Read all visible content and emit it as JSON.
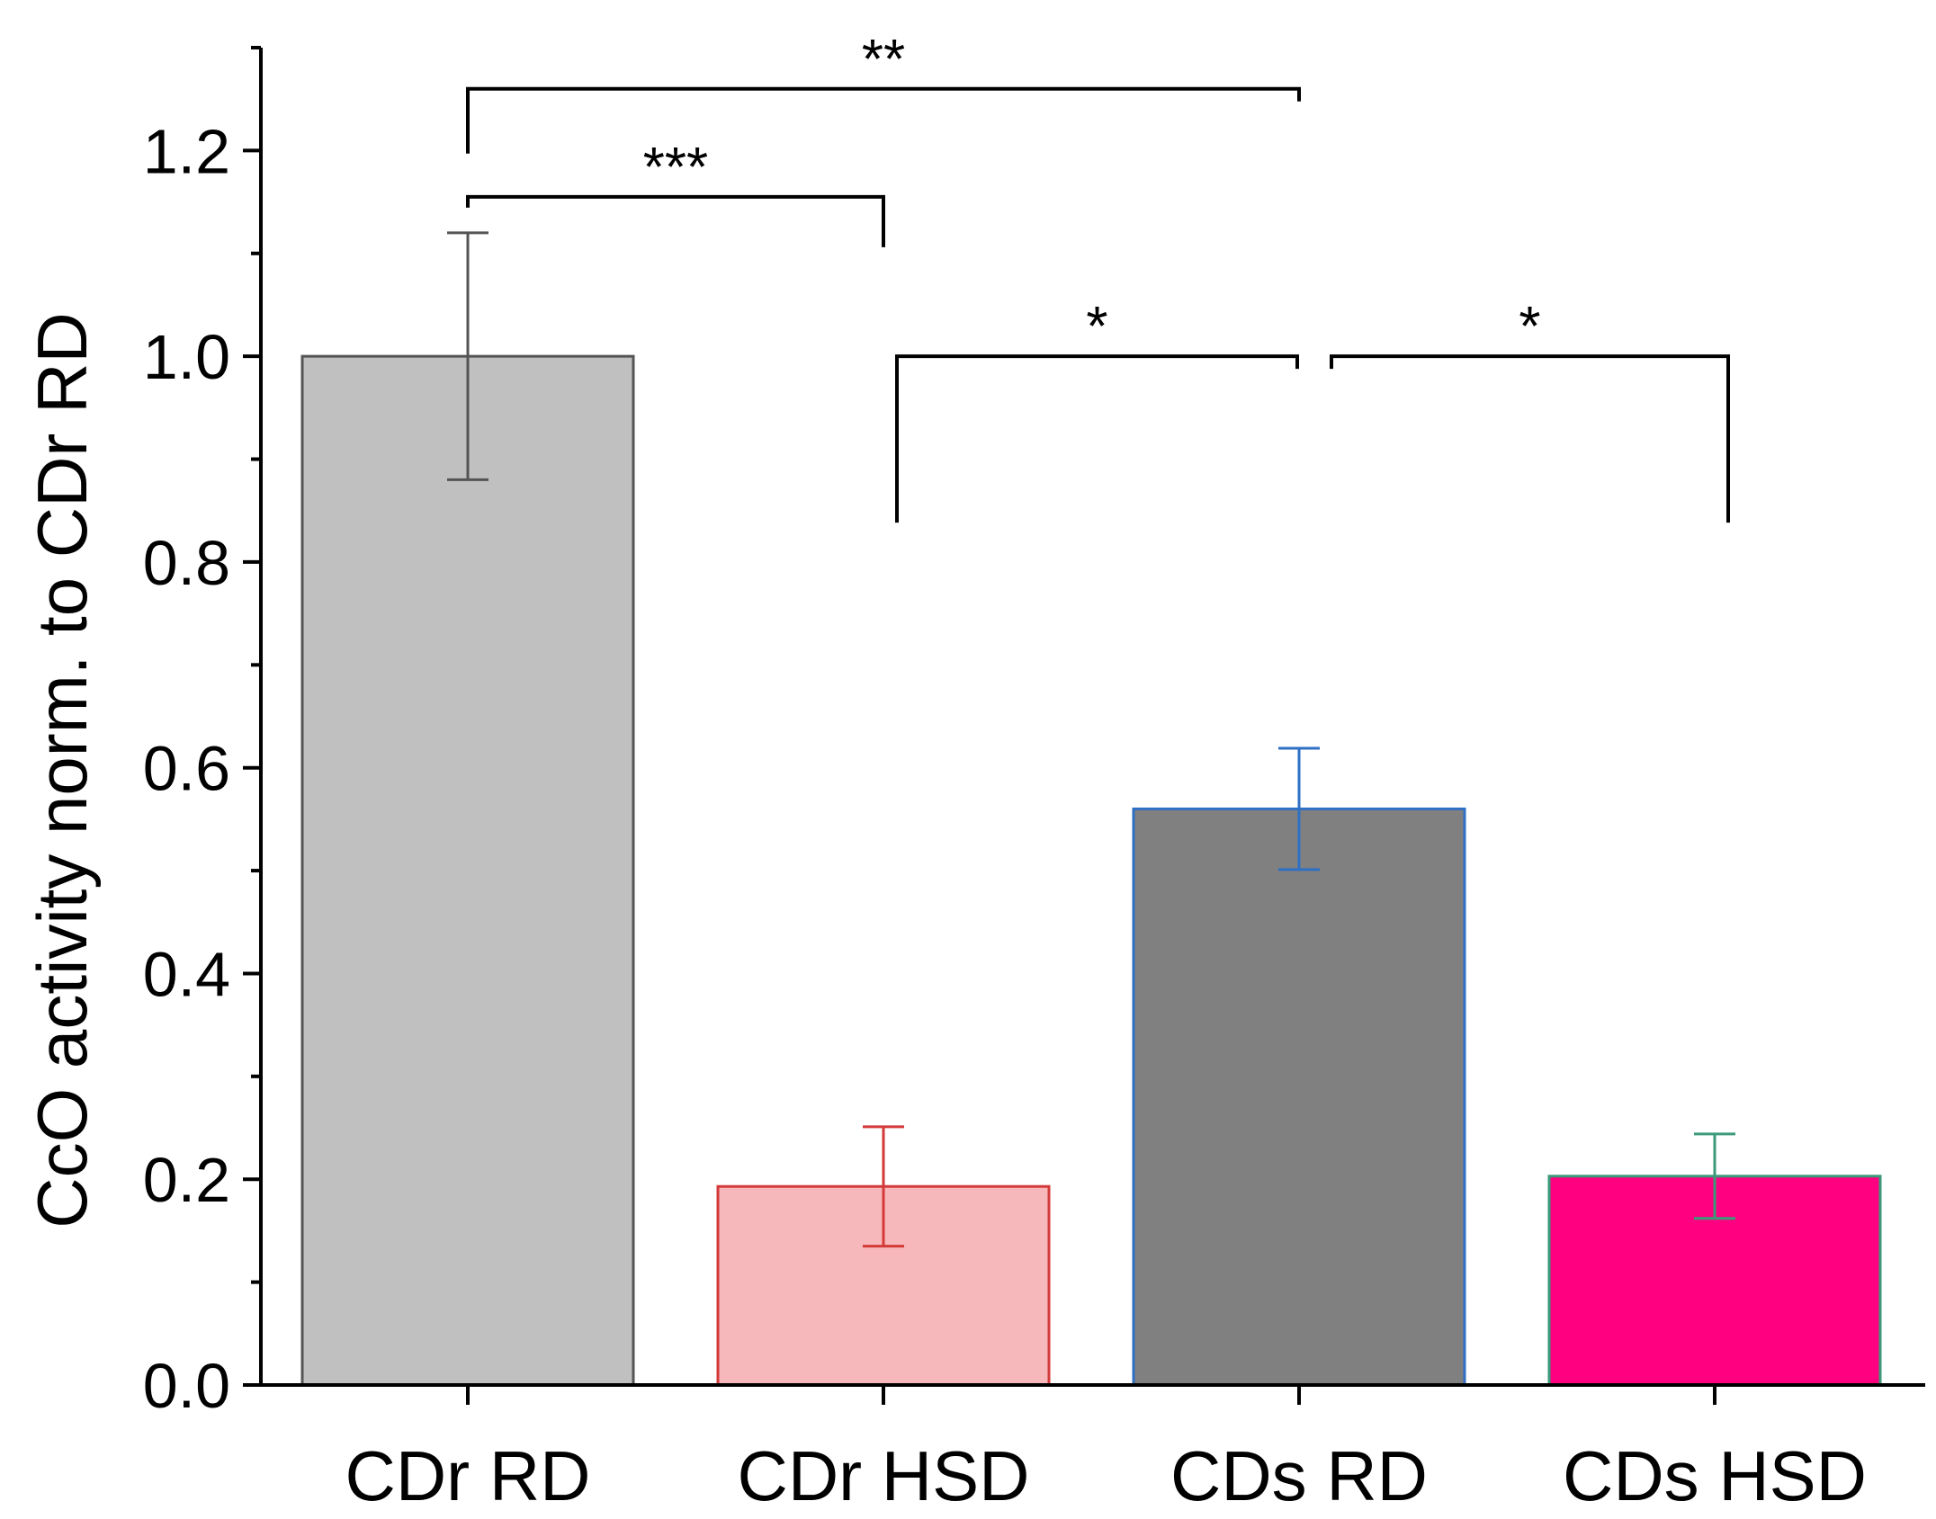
{
  "chart_data": {
    "type": "bar",
    "title": "",
    "xlabel": "",
    "ylabel": "CcO activity norm. to CDr RD",
    "ylim": [
      0,
      1.3
    ],
    "yticks": [
      "0.0",
      "0.2",
      "0.4",
      "0.6",
      "0.8",
      "1.0",
      "1.2"
    ],
    "yminor_step": 0.1,
    "categories": [
      "CDr RD",
      "CDr HSD",
      "CDs RD",
      "CDs HSD"
    ],
    "values": [
      1.0,
      0.193,
      0.56,
      0.203
    ],
    "errors": [
      0.12,
      0.058,
      0.059,
      0.041
    ],
    "bar_fill_colors": [
      "#c0c0c0",
      "#f7b8bb",
      "#808080",
      "#ff0080"
    ],
    "bar_edge_colors": [
      "#555555",
      "#d43a3a",
      "#2f6fc4",
      "#3a9a7a"
    ],
    "grid": false,
    "legend": null,
    "significance": [
      {
        "from": 0,
        "to": 2,
        "label": "**",
        "y": 1.26
      },
      {
        "from": 0,
        "to": 1,
        "label": "***",
        "y": 1.155
      },
      {
        "from": 1,
        "to": 2,
        "label": "*",
        "y": 1.0
      },
      {
        "from": 2,
        "to": 3,
        "label": "*",
        "y": 1.0
      }
    ]
  }
}
